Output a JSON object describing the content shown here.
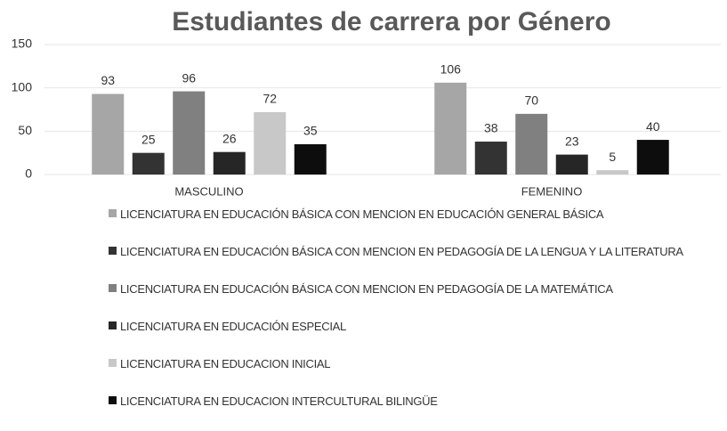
{
  "chart_data": {
    "type": "bar",
    "title": "Estudiantes de carrera por Género",
    "categories": [
      "MASCULINO",
      "FEMENINO"
    ],
    "series": [
      {
        "name": "LICENCIATURA EN EDUCACIÓN BÁSICA CON MENCION EN EDUCACIÓN GENERAL BÁSICA",
        "color": "#a6a6a6",
        "values": [
          93,
          106
        ]
      },
      {
        "name": "LICENCIATURA EN EDUCACIÓN BÁSICA CON MENCION EN PEDAGOGÍA DE LA LENGUA Y LA LITERATURA",
        "color": "#333333",
        "values": [
          25,
          38
        ]
      },
      {
        "name": "LICENCIATURA EN EDUCACIÓN BÁSICA CON MENCION EN PEDAGOGÍA DE LA MATEMÁTICA",
        "color": "#808080",
        "values": [
          96,
          70
        ]
      },
      {
        "name": "LICENCIATURA EN EDUCACIÓN ESPECIAL",
        "color": "#262626",
        "values": [
          26,
          23
        ]
      },
      {
        "name": "LICENCIATURA EN EDUCACION INICIAL",
        "color": "#c8c8c8",
        "values": [
          72,
          5
        ]
      },
      {
        "name": "LICENCIATURA EN EDUCACION INTERCULTURAL BILINGÜE",
        "color": "#0d0d0d",
        "values": [
          35,
          40
        ]
      }
    ],
    "ylim": [
      0,
      150
    ],
    "yticks": [
      0,
      50,
      100,
      150
    ],
    "grid": true
  }
}
